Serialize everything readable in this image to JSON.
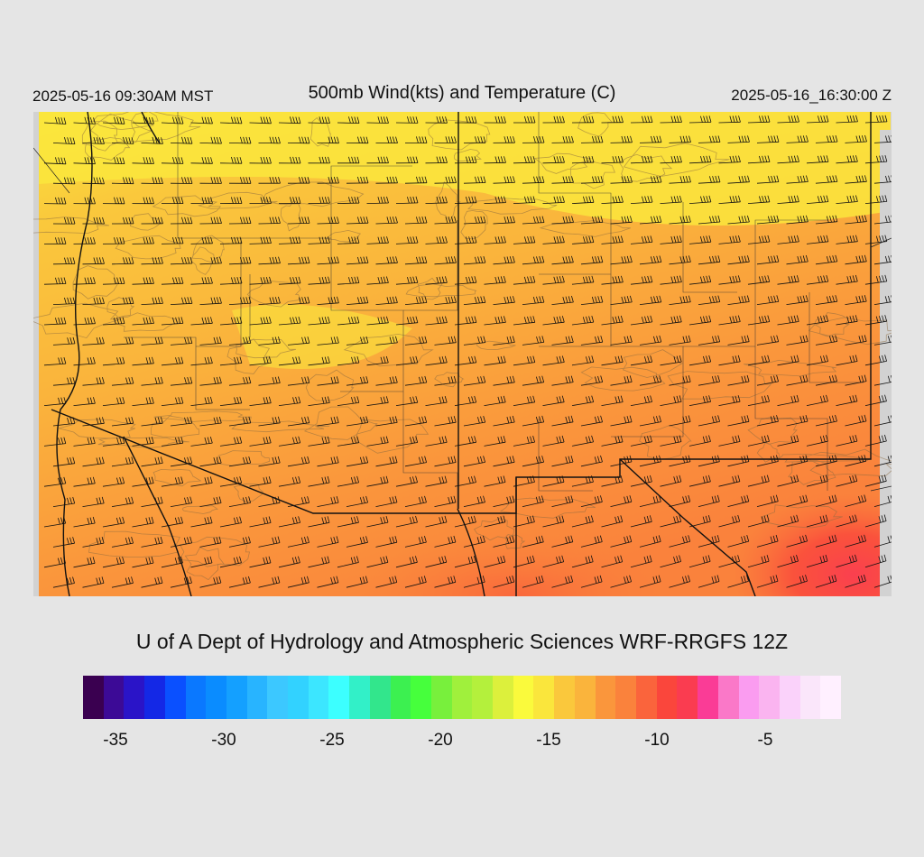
{
  "header": {
    "local_time": "2025-05-16 09:30AM MST",
    "title": "500mb Wind(kts) and Temperature (C)",
    "utc_time": "2025-05-16_16:30:00 Z"
  },
  "footer": {
    "credit": "U of A Dept of Hydrology and Atmospheric Sciences WRF-RRGFS 12Z"
  },
  "colorbar": {
    "colors": [
      "#3a0050",
      "#3c0a96",
      "#2a14c8",
      "#1428e6",
      "#0a50ff",
      "#0a78ff",
      "#0a8cff",
      "#14a0ff",
      "#28b4ff",
      "#3cc8ff",
      "#32d2ff",
      "#3ce6ff",
      "#3cffff",
      "#32f0c8",
      "#32e68c",
      "#3cf050",
      "#46ff3c",
      "#78f03c",
      "#a0f03c",
      "#b4f03c",
      "#dcf03c",
      "#fafa3c",
      "#fae63c",
      "#fac83c",
      "#fab43c",
      "#fa963c",
      "#fa823c",
      "#fa643c",
      "#fa463c",
      "#fa3c50",
      "#fa3c96",
      "#fa78c8",
      "#fa9cf0",
      "#fab4f0",
      "#fad2fa",
      "#fae6fa",
      "#fff0ff"
    ],
    "tick_labels": [
      {
        "label": "-35",
        "value": -35
      },
      {
        "label": "-30",
        "value": -30
      },
      {
        "label": "-25",
        "value": -25
      },
      {
        "label": "-20",
        "value": -20
      },
      {
        "label": "-15",
        "value": -15
      },
      {
        "label": "-10",
        "value": -10
      },
      {
        "label": "-5",
        "value": -5
      }
    ],
    "range": [
      -36.5,
      -1.5
    ]
  }
}
